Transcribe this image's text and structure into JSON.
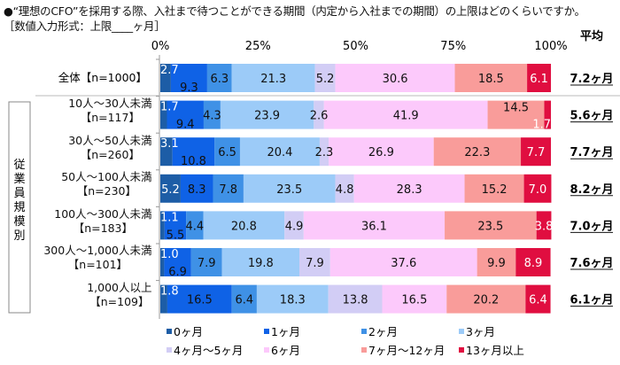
{
  "title": "●“理想のCFO”を採用する際、入社まで待つことができる期間（内定から入社までの期間）の上限はどのくらいですか。",
  "subtitle": "［数値入力形式：上限____ヶ月］",
  "avg_header": "平均",
  "group_label": "従業員規模別",
  "chart_data": {
    "type": "bar",
    "orientation": "horizontal",
    "stacked": true,
    "xlim": [
      0,
      100
    ],
    "x_ticks": [
      "0%",
      "25%",
      "50%",
      "75%",
      "100%"
    ],
    "legend_position": "bottom",
    "categories": [
      {
        "label": "全体【n=1000】",
        "line1": "全体【n=1000】",
        "line2": "",
        "avg": "7.2ヶ月"
      },
      {
        "label": "10人～30人未満【n=117】",
        "line1": "10人～30人未満",
        "line2": "【n=117】",
        "avg": "5.6ヶ月"
      },
      {
        "label": "30人～50人未満【n=260】",
        "line1": "30人～50人未満",
        "line2": "【n=260】",
        "avg": "7.7ヶ月"
      },
      {
        "label": "50人～100人未満【n=230】",
        "line1": "50人～100人未満",
        "line2": "【n=230】",
        "avg": "8.2ヶ月"
      },
      {
        "label": "100人～300人未満【n=183】",
        "line1": "100人～300人未満",
        "line2": "【n=183】",
        "avg": "7.0ヶ月"
      },
      {
        "label": "300人～1,000人未満【n=101】",
        "line1": "300人～1,000人未満",
        "line2": "【n=101】",
        "avg": "7.6ヶ月"
      },
      {
        "label": "1,000人以上【n=109】",
        "line1": "1,000人以上",
        "line2": "【n=109】",
        "avg": "6.1ヶ月"
      }
    ],
    "series": [
      {
        "name": "0ヶ月",
        "color": "#1d5da6",
        "values": [
          2.7,
          1.7,
          3.1,
          5.2,
          1.1,
          1.0,
          1.8
        ]
      },
      {
        "name": "1ヶ月",
        "color": "#0f62e6",
        "values": [
          9.3,
          9.4,
          10.8,
          8.3,
          5.5,
          6.9,
          16.5
        ]
      },
      {
        "name": "2ヶ月",
        "color": "#3f91e6",
        "values": [
          6.3,
          4.3,
          6.5,
          7.8,
          4.4,
          7.9,
          6.4
        ]
      },
      {
        "name": "3ヶ月",
        "color": "#9ccbf8",
        "values": [
          21.3,
          23.9,
          20.4,
          23.5,
          20.8,
          19.8,
          18.3
        ]
      },
      {
        "name": "4ヶ月～5ヶ月",
        "color": "#d2cdf5",
        "values": [
          5.2,
          2.6,
          2.3,
          4.8,
          4.9,
          7.9,
          13.8
        ]
      },
      {
        "name": "6ヶ月",
        "color": "#fcc9fb",
        "values": [
          30.6,
          41.9,
          26.9,
          28.3,
          36.1,
          37.6,
          16.5
        ]
      },
      {
        "name": "7ヶ月～12ヶ月",
        "color": "#f99c9a",
        "values": [
          18.5,
          14.5,
          22.3,
          15.2,
          23.5,
          9.9,
          20.2
        ]
      },
      {
        "name": "13ヶ月以上",
        "color": "#e00e40",
        "values": [
          6.1,
          1.7,
          7.7,
          7.0,
          3.8,
          8.9,
          6.4
        ]
      }
    ]
  }
}
